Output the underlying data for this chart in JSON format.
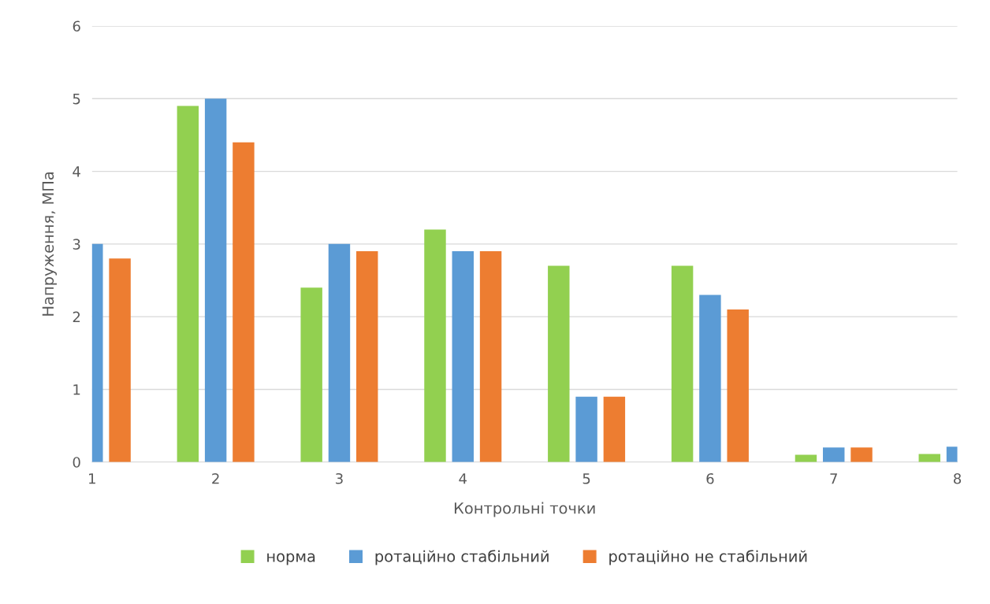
{
  "chart_data": {
    "type": "bar",
    "xlabel": "Контрольні точки",
    "ylabel": "Напруження, МПа",
    "x": [
      1,
      2,
      3,
      4,
      5,
      6,
      7,
      8
    ],
    "series": [
      {
        "name": "норма",
        "color": "#92d050",
        "values": [
          null,
          4.9,
          2.4,
          3.2,
          2.7,
          2.7,
          0.1,
          0.11
        ]
      },
      {
        "name": "ротаційно стабільний",
        "color": "#5b9bd5",
        "values": [
          3.0,
          5.0,
          3.0,
          2.9,
          0.9,
          2.3,
          0.2,
          0.21
        ]
      },
      {
        "name": "ротаційно не стабільний",
        "color": "#ed7d31",
        "values": [
          2.8,
          4.4,
          2.9,
          2.9,
          0.9,
          2.1,
          0.2,
          null
        ]
      }
    ],
    "xlim": [
      1,
      8
    ],
    "xticks": [
      1,
      2,
      3,
      4,
      5,
      6,
      7,
      8
    ],
    "ylim": [
      0,
      6
    ],
    "yticks": [
      0,
      1,
      2,
      3,
      4,
      5,
      6
    ],
    "grid": "y",
    "legend": "bottom"
  }
}
